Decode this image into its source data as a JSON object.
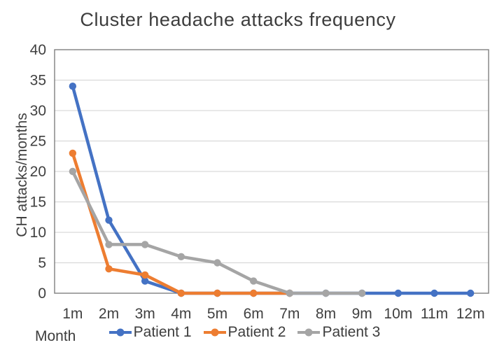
{
  "chart_data": {
    "type": "line",
    "title": "Cluster headache attacks frequency",
    "xlabel": "Month",
    "ylabel": "CH attacks/months",
    "categories": [
      "1m",
      "2m",
      "3m",
      "4m",
      "5m",
      "6m",
      "7m",
      "8m",
      "9m",
      "10m",
      "11m",
      "12m"
    ],
    "ylim": [
      0,
      40
    ],
    "ytick_step": 5,
    "grid": true,
    "legend_position": "bottom",
    "series": [
      {
        "name": "Patient 1",
        "color": "#4472C4",
        "values": [
          34,
          12,
          2,
          0,
          0,
          0,
          0,
          0,
          0,
          0,
          0,
          0
        ]
      },
      {
        "name": "Patient 2",
        "color": "#ED7D31",
        "values": [
          23,
          4,
          3,
          0,
          0,
          0,
          0
        ]
      },
      {
        "name": "Patient 3",
        "color": "#A5A5A5",
        "values": [
          20,
          8,
          8,
          6,
          5,
          2,
          0,
          0,
          0
        ]
      }
    ]
  },
  "colors": {
    "background": "#FFFFFF",
    "grid": "#D9D9D9",
    "axis": "#7F7F7F",
    "text": "#404040"
  }
}
